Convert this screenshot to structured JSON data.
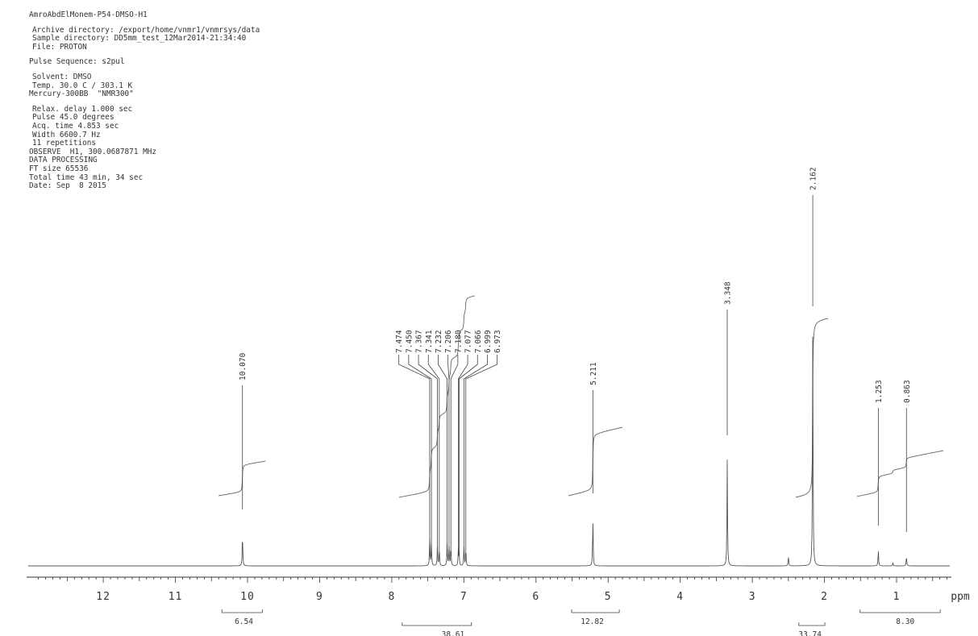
{
  "header": {
    "title": "AmroAbdElMonem-P54-DMSO-H1",
    "archive": "Archive directory: /export/home/vnmr1/vnmrsys/data",
    "sample": "Sample directory: DD5mm_test_12Mar2014-21:34:40",
    "file": "File: PROTON",
    "pulse_sequence": "Pulse Sequence: s2pul",
    "solvent": "Solvent: DMSO",
    "temp": "Temp. 30.0 C / 303.1 K",
    "instrument": "Mercury-300BB  \"NMR300\"",
    "relax": "Relax. delay 1.000 sec",
    "pulse": "Pulse 45.0 degrees",
    "acq": "Acq. time 4.853 sec",
    "width": "Width 6600.7 Hz",
    "reps": "11 repetitions",
    "observe": "OBSERVE  H1, 300.0687871 MHz",
    "processing": "DATA PROCESSING",
    "ft": "FT size 65536",
    "total": "Total time 43 min, 34 sec",
    "date": "Date: Sep  8 2015"
  },
  "chart_data": {
    "type": "line",
    "title": "",
    "xlabel": "ppm",
    "ylabel": "",
    "xlim": [
      13.0,
      0.0
    ],
    "x_reversed": true,
    "grid": false,
    "x_ticks": [
      12,
      11,
      10,
      9,
      8,
      7,
      6,
      5,
      4,
      3,
      2,
      1
    ],
    "peaks": [
      {
        "ppm": 10.07,
        "height": 0.1
      },
      {
        "ppm": 7.474,
        "height": 0.08
      },
      {
        "ppm": 7.45,
        "height": 0.07
      },
      {
        "ppm": 7.367,
        "height": 0.06
      },
      {
        "ppm": 7.341,
        "height": 0.05
      },
      {
        "ppm": 7.232,
        "height": 0.07
      },
      {
        "ppm": 7.206,
        "height": 0.06
      },
      {
        "ppm": 7.18,
        "height": 0.06
      },
      {
        "ppm": 7.077,
        "height": 0.05
      },
      {
        "ppm": 7.066,
        "height": 0.04
      },
      {
        "ppm": 6.999,
        "height": 0.06
      },
      {
        "ppm": 6.973,
        "height": 0.05
      },
      {
        "ppm": 5.211,
        "height": 0.15
      },
      {
        "ppm": 3.348,
        "height": 0.33
      },
      {
        "ppm": 2.5,
        "height": 0.03
      },
      {
        "ppm": 2.162,
        "height": 0.73
      },
      {
        "ppm": 1.253,
        "height": 0.05
      },
      {
        "ppm": 1.05,
        "height": 0.01
      },
      {
        "ppm": 0.863,
        "height": 0.03
      }
    ],
    "peak_labels": [
      {
        "label": "10.070",
        "ppm": 10.07
      },
      {
        "label": "7.474",
        "ppm": 7.474
      },
      {
        "label": "7.450",
        "ppm": 7.45
      },
      {
        "label": "7.367",
        "ppm": 7.367
      },
      {
        "label": "7.341",
        "ppm": 7.341
      },
      {
        "label": "7.232",
        "ppm": 7.232
      },
      {
        "label": "7.206",
        "ppm": 7.206
      },
      {
        "label": "7.180",
        "ppm": 7.18
      },
      {
        "label": "7.077",
        "ppm": 7.077
      },
      {
        "label": "7.066",
        "ppm": 7.066
      },
      {
        "label": "6.999",
        "ppm": 6.999
      },
      {
        "label": "6.973",
        "ppm": 6.973
      },
      {
        "label": "5.211",
        "ppm": 5.211
      },
      {
        "label": "3.348",
        "ppm": 3.348
      },
      {
        "label": "2.162",
        "ppm": 2.162
      },
      {
        "label": "1.253",
        "ppm": 1.253
      },
      {
        "label": "0.863",
        "ppm": 0.863
      }
    ],
    "integrals": [
      {
        "from": 10.4,
        "to": 9.75,
        "value": "6.54",
        "label_ppm": 10.05
      },
      {
        "from": 7.9,
        "to": 6.85,
        "value": "38.61",
        "label_ppm": 7.15
      },
      {
        "from": 5.55,
        "to": 4.8,
        "value": "12.82",
        "label_ppm": 5.22
      },
      {
        "from": 2.4,
        "to": 1.95,
        "value": "33.74",
        "label_ppm": 2.2
      },
      {
        "from": 1.55,
        "to": 0.35,
        "value": "8.30",
        "label_ppm": 0.88
      }
    ]
  }
}
